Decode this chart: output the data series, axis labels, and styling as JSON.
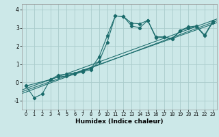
{
  "xlabel": "Humidex (Indice chaleur)",
  "background_color": "#cce8e8",
  "grid_color": "#aacccc",
  "line_color": "#1a6b6b",
  "xlim": [
    -0.5,
    23.5
  ],
  "ylim": [
    -1.5,
    4.3
  ],
  "xticks": [
    0,
    1,
    2,
    3,
    4,
    5,
    6,
    7,
    8,
    9,
    10,
    11,
    12,
    13,
    14,
    15,
    16,
    17,
    18,
    19,
    20,
    21,
    22,
    23
  ],
  "yticks": [
    -1,
    0,
    1,
    2,
    3,
    4
  ],
  "series1_x": [
    0,
    1,
    2,
    3,
    4,
    5,
    6,
    7,
    8,
    9,
    10,
    11,
    12,
    13,
    14,
    15,
    16,
    17,
    18,
    19,
    20,
    21,
    22,
    23
  ],
  "series1_y": [
    -0.2,
    -0.85,
    -0.65,
    0.15,
    0.4,
    0.45,
    0.5,
    0.65,
    0.75,
    1.4,
    2.55,
    3.65,
    3.62,
    3.25,
    3.22,
    3.4,
    2.5,
    2.5,
    2.4,
    2.85,
    3.05,
    3.1,
    2.6,
    3.35
  ],
  "series2_x": [
    0,
    3,
    4,
    5,
    6,
    7,
    8,
    9,
    10,
    11,
    12,
    13,
    14,
    15,
    16,
    17,
    18,
    19,
    20,
    21,
    22,
    23
  ],
  "series2_y": [
    -0.2,
    0.15,
    0.3,
    0.35,
    0.45,
    0.58,
    0.7,
    1.15,
    2.2,
    3.65,
    3.62,
    3.1,
    3.0,
    3.4,
    2.45,
    2.48,
    2.38,
    2.82,
    3.0,
    3.05,
    2.55,
    3.3
  ],
  "reg_lines": [
    [
      [
        -0.5,
        23.5
      ],
      [
        -0.62,
        3.38
      ]
    ],
    [
      [
        -0.5,
        23.5
      ],
      [
        -0.52,
        3.28
      ]
    ],
    [
      [
        -0.5,
        23.5
      ],
      [
        -0.42,
        3.48
      ]
    ]
  ]
}
